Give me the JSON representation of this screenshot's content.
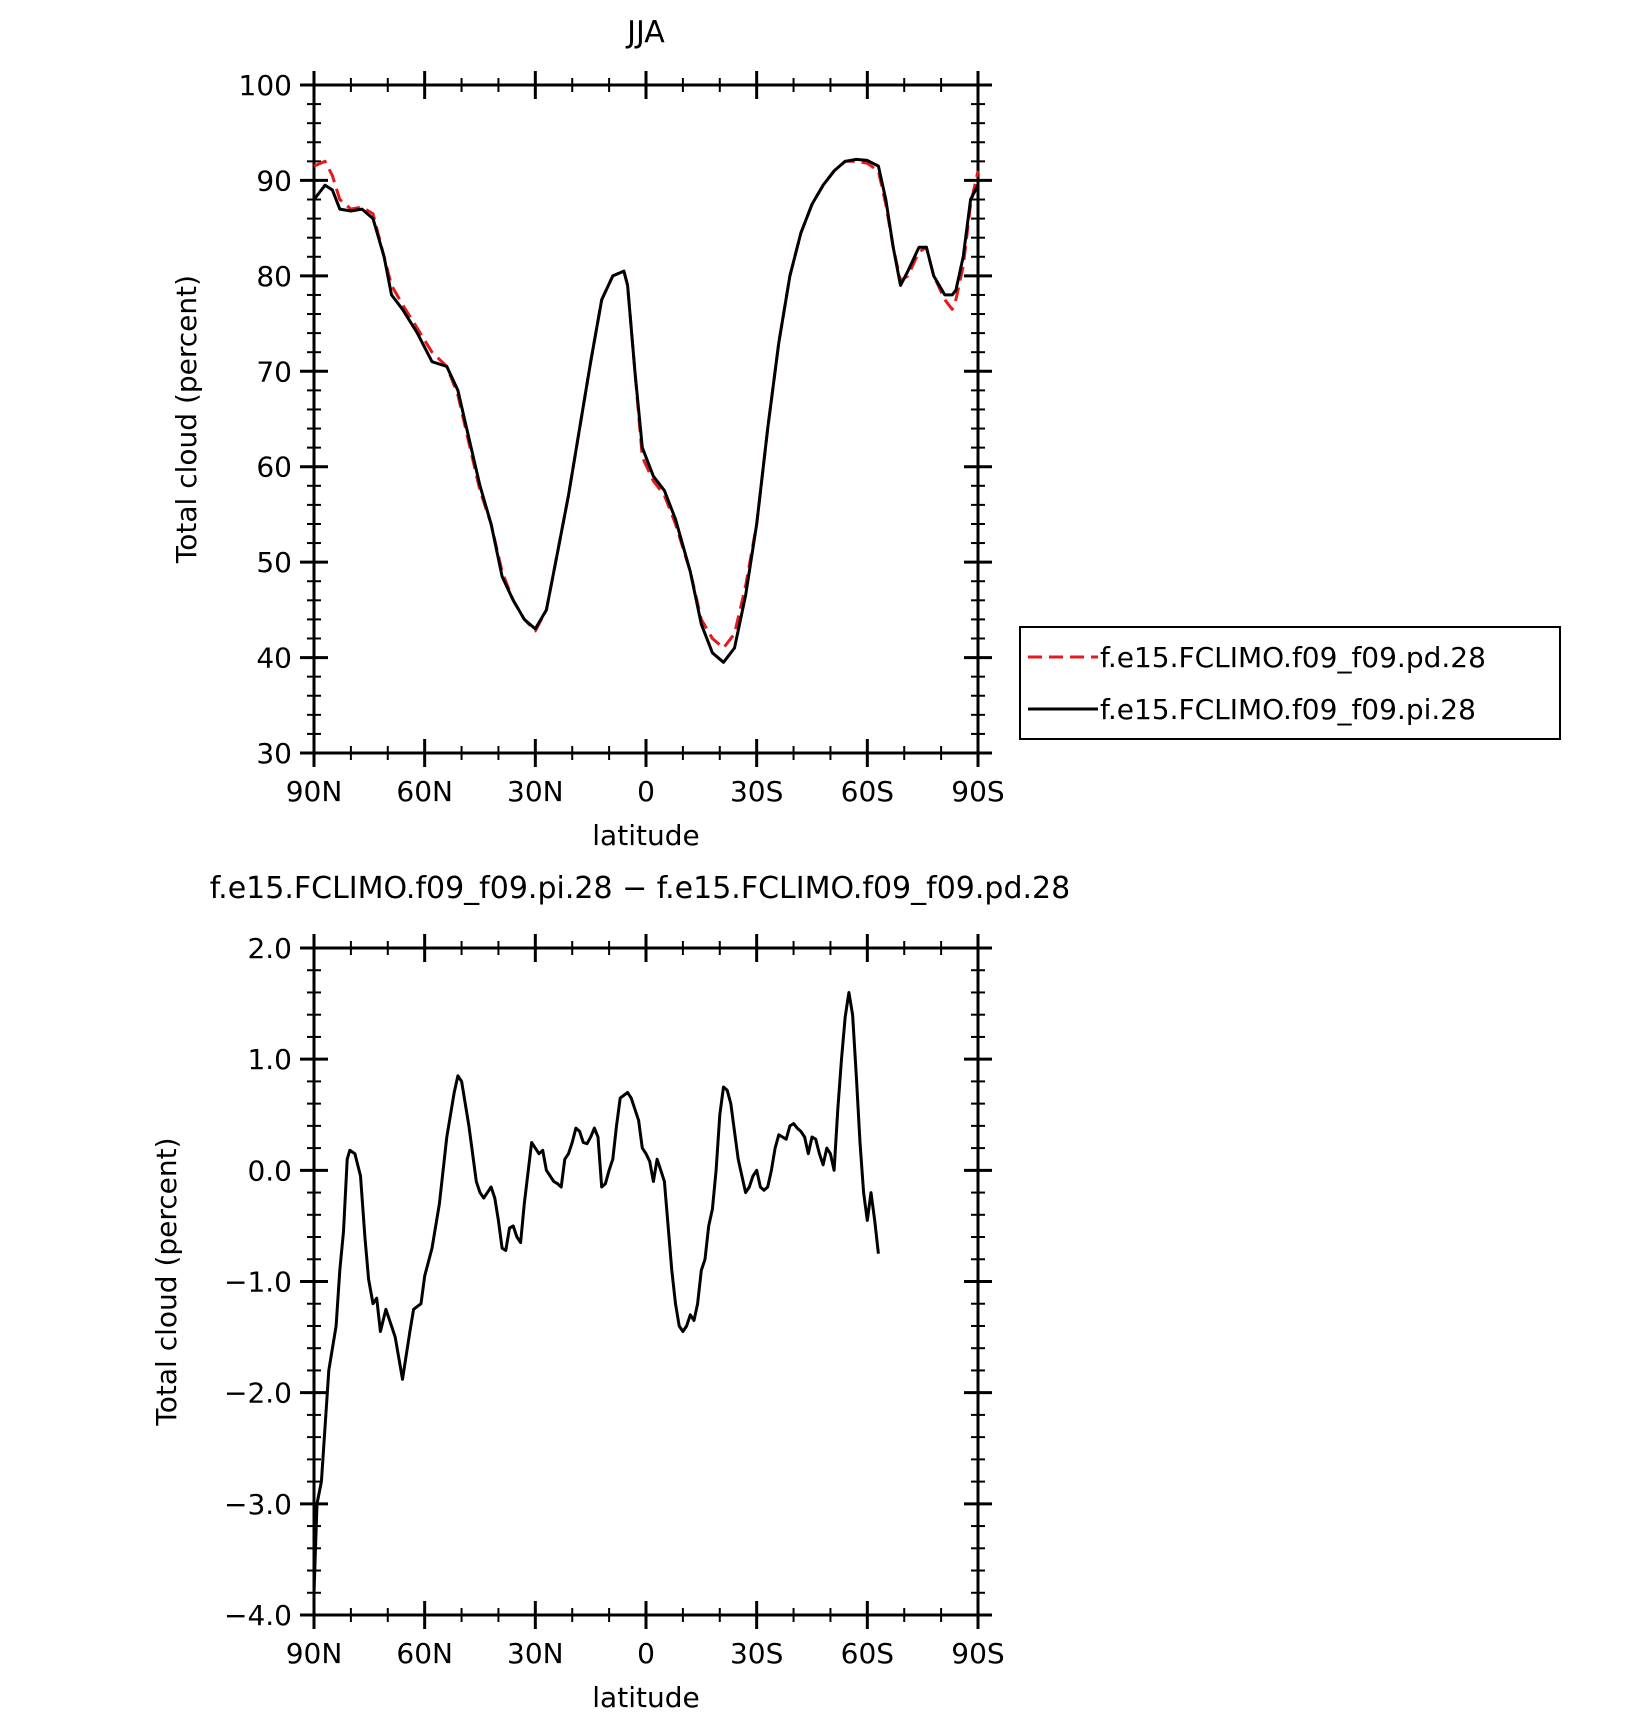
{
  "chart_data": [
    {
      "type": "line",
      "title": "JJA",
      "xlabel": "latitude",
      "ylabel": "Total cloud (percent)",
      "xlim": [
        90,
        -90
      ],
      "ylim": [
        30,
        100
      ],
      "xticks": [
        90,
        60,
        30,
        0,
        -30,
        -60,
        -90
      ],
      "xticklabels": [
        "90N",
        "60N",
        "30N",
        "0",
        "30S",
        "60S",
        "90S"
      ],
      "yticks": [
        30,
        40,
        50,
        60,
        70,
        80,
        90,
        100
      ],
      "yticklabels": [
        "30",
        "40",
        "50",
        "60",
        "70",
        "80",
        "90",
        "100"
      ],
      "grid": false,
      "legend_position": "right",
      "series": [
        {
          "name": "f.e15.FCLIMO.f09_f09.pd.28",
          "color": "#e41a1c",
          "dash": "dashed",
          "points": [
            [
              90,
              91.5
            ],
            [
              87,
              92
            ],
            [
              85,
              90.5
            ],
            [
              83,
              88
            ],
            [
              80,
              87
            ],
            [
              77,
              87.2
            ],
            [
              74,
              86.5
            ],
            [
              71,
              82
            ],
            [
              69,
              79
            ],
            [
              66,
              77
            ],
            [
              62,
              74.5
            ],
            [
              58,
              72
            ],
            [
              54,
              70.5
            ],
            [
              51,
              67.5
            ],
            [
              48,
              62.5
            ],
            [
              45,
              57.5
            ],
            [
              42,
              54
            ],
            [
              39,
              49
            ],
            [
              36,
              46
            ],
            [
              33,
              44
            ],
            [
              30,
              42.8
            ],
            [
              27,
              45
            ],
            [
              24,
              51
            ],
            [
              21,
              57
            ],
            [
              18,
              64
            ],
            [
              15,
              71
            ],
            [
              12,
              77.5
            ],
            [
              9,
              80
            ],
            [
              6,
              80.5
            ],
            [
              5,
              79
            ],
            [
              3,
              70
            ],
            [
              1,
              61
            ],
            [
              -2,
              58.5
            ],
            [
              -5,
              57
            ],
            [
              -8,
              54
            ],
            [
              -12,
              49
            ],
            [
              -15,
              44
            ],
            [
              -18,
              42
            ],
            [
              -21,
              41
            ],
            [
              -24,
              42.5
            ],
            [
              -27,
              47.5
            ],
            [
              -30,
              54
            ],
            [
              -33,
              64
            ],
            [
              -36,
              73
            ],
            [
              -39,
              80
            ],
            [
              -42,
              84.5
            ],
            [
              -45,
              87.5
            ],
            [
              -48,
              89.5
            ],
            [
              -51,
              91
            ],
            [
              -54,
              92
            ],
            [
              -57,
              92
            ],
            [
              -60,
              91.8
            ],
            [
              -63,
              91
            ],
            [
              -65,
              87.5
            ],
            [
              -67,
              83
            ],
            [
              -69,
              79.5
            ],
            [
              -71,
              80
            ],
            [
              -74,
              82.5
            ],
            [
              -76,
              83
            ],
            [
              -78,
              80
            ],
            [
              -81,
              77.5
            ],
            [
              -83,
              76.5
            ],
            [
              -84,
              77.5
            ],
            [
              -86,
              81
            ],
            [
              -88,
              87.5
            ],
            [
              -90,
              91
            ]
          ]
        },
        {
          "name": "f.e15.FCLIMO.f09_f09.pi.28",
          "color": "#000000",
          "dash": "solid",
          "points": [
            [
              90,
              88
            ],
            [
              87,
              89.5
            ],
            [
              85,
              89
            ],
            [
              83,
              87
            ],
            [
              80,
              86.8
            ],
            [
              77,
              87
            ],
            [
              74,
              86
            ],
            [
              71,
              82
            ],
            [
              69,
              78
            ],
            [
              66,
              76.5
            ],
            [
              62,
              74
            ],
            [
              58,
              71
            ],
            [
              54,
              70.5
            ],
            [
              51,
              68
            ],
            [
              48,
              63
            ],
            [
              45,
              58
            ],
            [
              42,
              54
            ],
            [
              39,
              48.5
            ],
            [
              36,
              46
            ],
            [
              33,
              44
            ],
            [
              30,
              43
            ],
            [
              27,
              45
            ],
            [
              24,
              51
            ],
            [
              21,
              57
            ],
            [
              18,
              64
            ],
            [
              15,
              71
            ],
            [
              12,
              77.5
            ],
            [
              9,
              80
            ],
            [
              6,
              80.5
            ],
            [
              5,
              79
            ],
            [
              3,
              70
            ],
            [
              1,
              62
            ],
            [
              -2,
              59
            ],
            [
              -5,
              57.5
            ],
            [
              -8,
              54.5
            ],
            [
              -12,
              49
            ],
            [
              -15,
              43.5
            ],
            [
              -18,
              40.5
            ],
            [
              -21,
              39.5
            ],
            [
              -24,
              41
            ],
            [
              -27,
              46.5
            ],
            [
              -30,
              54
            ],
            [
              -33,
              64
            ],
            [
              -36,
              73
            ],
            [
              -39,
              80
            ],
            [
              -42,
              84.5
            ],
            [
              -45,
              87.5
            ],
            [
              -48,
              89.5
            ],
            [
              -51,
              91
            ],
            [
              -54,
              92
            ],
            [
              -57,
              92.2
            ],
            [
              -60,
              92.1
            ],
            [
              -63,
              91.5
            ],
            [
              -65,
              88
            ],
            [
              -67,
              83
            ],
            [
              -69,
              79
            ],
            [
              -71,
              80.5
            ],
            [
              -74,
              83
            ],
            [
              -76,
              83
            ],
            [
              -78,
              80
            ],
            [
              -81,
              78
            ],
            [
              -83,
              78
            ],
            [
              -84,
              78.5
            ],
            [
              -86,
              82
            ],
            [
              -88,
              88
            ],
            [
              -90,
              89.5
            ]
          ]
        }
      ]
    },
    {
      "type": "line",
      "title": "f.e15.FCLIMO.f09_f09.pi.28 − f.e15.FCLIMO.f09_f09.pd.28",
      "xlabel": "latitude",
      "ylabel": "Total cloud (percent)",
      "xlim": [
        90,
        -90
      ],
      "ylim": [
        -4.0,
        2.0
      ],
      "xticks": [
        90,
        60,
        30,
        0,
        -30,
        -60,
        -90
      ],
      "xticklabels": [
        "90N",
        "60N",
        "30N",
        "0",
        "30S",
        "60S",
        "90S"
      ],
      "yticks": [
        -4.0,
        -3.0,
        -2.0,
        -1.0,
        0.0,
        1.0,
        2.0
      ],
      "yticklabels": [
        "−4.0",
        "−3.0",
        "−2.0",
        "−1.0",
        "0.0",
        "1.0",
        "2.0"
      ],
      "grid": false,
      "series": [
        {
          "color": "#000000",
          "dash": "solid",
          "points": [
            [
              90,
              -3.8
            ],
            [
              89.2,
              -3.0
            ],
            [
              88,
              -2.8
            ],
            [
              86,
              -1.8
            ],
            [
              84,
              -1.4
            ],
            [
              83,
              -0.9
            ],
            [
              82,
              -0.55
            ],
            [
              81,
              0.1
            ],
            [
              80.3,
              0.18
            ],
            [
              78.9,
              0.15
            ],
            [
              77.4,
              -0.05
            ],
            [
              76.2,
              -0.6
            ],
            [
              75.2,
              -0.98
            ],
            [
              74,
              -1.2
            ],
            [
              73,
              -1.15
            ],
            [
              72,
              -1.45
            ],
            [
              70.5,
              -1.25
            ],
            [
              69,
              -1.4
            ],
            [
              68,
              -1.5
            ],
            [
              66,
              -1.88
            ],
            [
              64,
              -1.45
            ],
            [
              63,
              -1.25
            ],
            [
              61,
              -1.2
            ],
            [
              60,
              -0.95
            ],
            [
              58,
              -0.7
            ],
            [
              56,
              -0.3
            ],
            [
              54,
              0.3
            ],
            [
              52,
              0.7
            ],
            [
              51,
              0.85
            ],
            [
              50,
              0.8
            ],
            [
              48,
              0.4
            ],
            [
              46,
              -0.1
            ],
            [
              45,
              -0.2
            ],
            [
              44,
              -0.25
            ],
            [
              43,
              -0.2
            ],
            [
              42,
              -0.15
            ],
            [
              41,
              -0.25
            ],
            [
              40,
              -0.45
            ],
            [
              39,
              -0.7
            ],
            [
              38,
              -0.72
            ],
            [
              37,
              -0.52
            ],
            [
              36,
              -0.5
            ],
            [
              35,
              -0.6
            ],
            [
              34,
              -0.65
            ],
            [
              33,
              -0.3
            ],
            [
              31,
              0.25
            ],
            [
              30,
              0.2
            ],
            [
              29,
              0.15
            ],
            [
              28,
              0.18
            ],
            [
              27,
              0.0
            ],
            [
              25,
              -0.1
            ],
            [
              24,
              -0.12
            ],
            [
              23,
              -0.15
            ],
            [
              22,
              0.1
            ],
            [
              21,
              0.15
            ],
            [
              20,
              0.25
            ],
            [
              19,
              0.38
            ],
            [
              18,
              0.35
            ],
            [
              17,
              0.25
            ],
            [
              16,
              0.24
            ],
            [
              15,
              0.3
            ],
            [
              14,
              0.38
            ],
            [
              13,
              0.3
            ],
            [
              12,
              -0.15
            ],
            [
              11,
              -0.12
            ],
            [
              10,
              0.0
            ],
            [
              9,
              0.1
            ],
            [
              8,
              0.4
            ],
            [
              7,
              0.65
            ],
            [
              5,
              0.7
            ],
            [
              4,
              0.65
            ],
            [
              3,
              0.55
            ],
            [
              2,
              0.45
            ],
            [
              1,
              0.2
            ],
            [
              0,
              0.15
            ],
            [
              -1,
              0.08
            ],
            [
              -2,
              -0.1
            ],
            [
              -3,
              0.1
            ],
            [
              -4,
              0.0
            ],
            [
              -5,
              -0.1
            ],
            [
              -6,
              -0.5
            ],
            [
              -7,
              -0.9
            ],
            [
              -8,
              -1.2
            ],
            [
              -9,
              -1.4
            ],
            [
              -10,
              -1.45
            ],
            [
              -11,
              -1.4
            ],
            [
              -12,
              -1.3
            ],
            [
              -13,
              -1.35
            ],
            [
              -14,
              -1.2
            ],
            [
              -15,
              -0.9
            ],
            [
              -16,
              -0.8
            ],
            [
              -17,
              -0.5
            ],
            [
              -18,
              -0.35
            ],
            [
              -19,
              0.0
            ],
            [
              -20,
              0.5
            ],
            [
              -21,
              0.75
            ],
            [
              -22,
              0.72
            ],
            [
              -23,
              0.6
            ],
            [
              -24,
              0.35
            ],
            [
              -25,
              0.1
            ],
            [
              -26,
              -0.05
            ],
            [
              -27,
              -0.2
            ],
            [
              -28,
              -0.15
            ],
            [
              -29,
              -0.05
            ],
            [
              -30,
              0.0
            ],
            [
              -31,
              -0.15
            ],
            [
              -32,
              -0.18
            ],
            [
              -33,
              -0.15
            ],
            [
              -34,
              0.0
            ],
            [
              -35,
              0.2
            ],
            [
              -36,
              0.32
            ],
            [
              -37,
              0.3
            ],
            [
              -38,
              0.28
            ],
            [
              -39,
              0.4
            ],
            [
              -40,
              0.42
            ],
            [
              -41,
              0.38
            ],
            [
              -42,
              0.35
            ],
            [
              -43,
              0.3
            ],
            [
              -44,
              0.15
            ],
            [
              -45,
              0.3
            ],
            [
              -46,
              0.28
            ],
            [
              -47,
              0.15
            ],
            [
              -48,
              0.05
            ],
            [
              -49,
              0.2
            ],
            [
              -50,
              0.15
            ],
            [
              -51,
              0.0
            ],
            [
              -52,
              0.55
            ],
            [
              -53,
              1.0
            ],
            [
              -54,
              1.38
            ],
            [
              -55,
              1.6
            ],
            [
              -56,
              1.4
            ],
            [
              -57,
              0.85
            ],
            [
              -58,
              0.25
            ],
            [
              -59,
              -0.2
            ],
            [
              -60,
              -0.45
            ],
            [
              -61,
              -0.2
            ],
            [
              -62,
              -0.45
            ],
            [
              -63,
              -0.75
            ]
          ]
        }
      ]
    }
  ]
}
